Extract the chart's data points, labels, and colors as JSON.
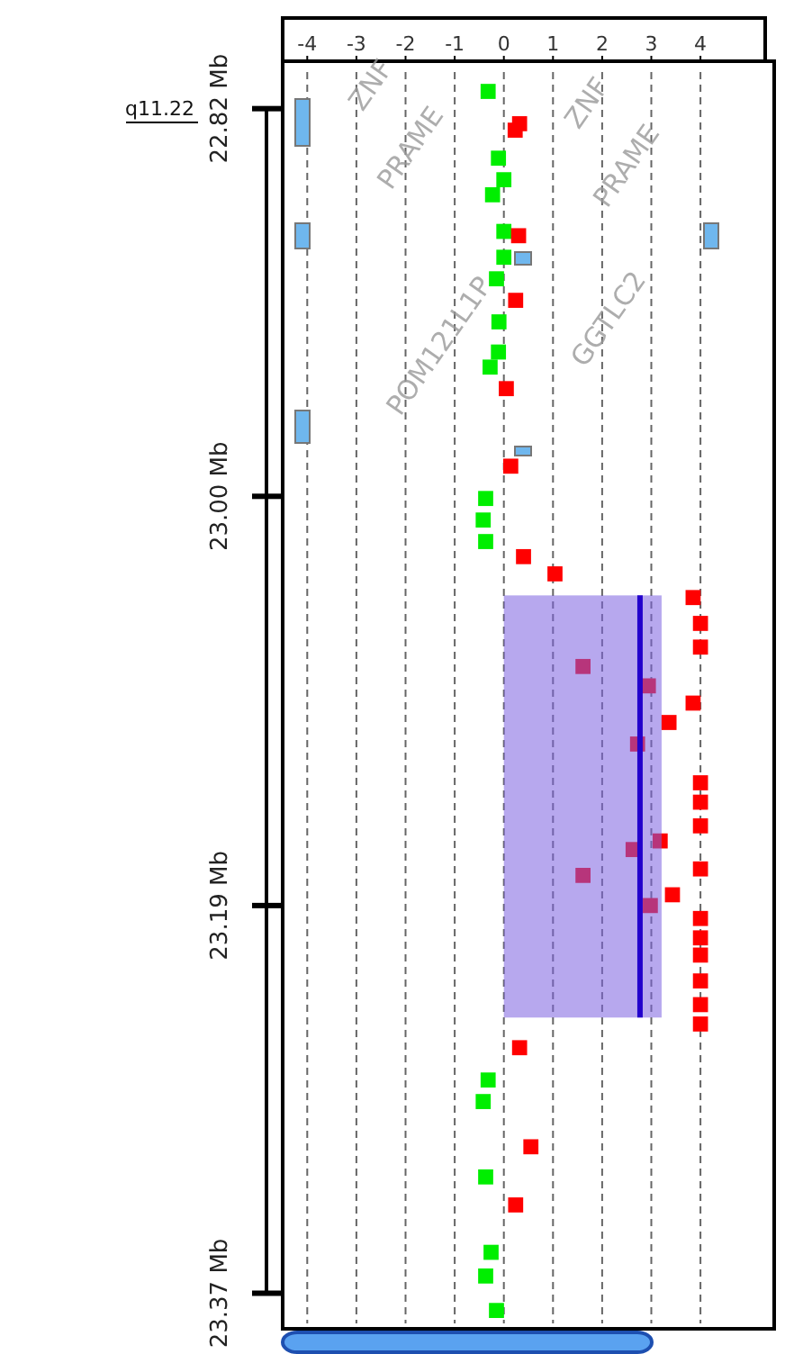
{
  "chart_data": {
    "type": "scatter",
    "xlim": [
      -4.5,
      5.5
    ],
    "xticks": [
      -4,
      -3,
      -2,
      -1,
      0,
      1,
      2,
      3,
      4
    ],
    "ylim": [
      23.384,
      22.803
    ],
    "yticks": [
      {
        "value": 22.82,
        "label": "22.82 Mb"
      },
      {
        "value": 23.0,
        "label": "23.00 Mb"
      },
      {
        "value": 23.19,
        "label": "23.19 Mb"
      },
      {
        "value": 23.37,
        "label": "23.37 Mb"
      }
    ],
    "grid": "x",
    "marker": "square",
    "series": [
      {
        "color": "#00ee00",
        "x": [
          -0.32,
          -0.11,
          0.0,
          -0.23,
          0.0,
          0.0,
          -0.15,
          -0.1,
          -0.11,
          -0.28,
          -0.37,
          -0.42,
          -0.37,
          -0.32,
          -0.42,
          -0.37,
          -0.26,
          -0.37,
          -0.15
        ],
        "values": [
          22.812,
          22.843,
          22.853,
          22.86,
          22.877,
          22.889,
          22.899,
          22.919,
          22.933,
          22.94,
          23.001,
          23.011,
          23.021,
          23.271,
          23.281,
          23.316,
          23.351,
          23.362,
          23.378
        ]
      },
      {
        "color": "#ff0000",
        "x": [
          0.32,
          0.23,
          0.3,
          0.24,
          0.05,
          0.14,
          0.4,
          1.04,
          3.85,
          4.0,
          4.0,
          1.61,
          2.94,
          3.85,
          3.36,
          2.72,
          4.0,
          4.0,
          4.0,
          3.18,
          2.63,
          4.0,
          1.61,
          3.43,
          2.98,
          4.0,
          4.0,
          4.0,
          4.0,
          4.0,
          4.0,
          0.32,
          0.55,
          0.24
        ],
        "values": [
          22.827,
          22.83,
          22.879,
          22.909,
          22.95,
          22.986,
          23.028,
          23.036,
          23.047,
          23.059,
          23.07,
          23.079,
          23.088,
          23.096,
          23.105,
          23.115,
          23.133,
          23.142,
          23.153,
          23.16,
          23.164,
          23.173,
          23.176,
          23.185,
          23.19,
          23.196,
          23.205,
          23.213,
          23.225,
          23.236,
          23.245,
          23.256,
          23.302,
          23.329
        ]
      },
      {
        "type": "line",
        "marker": "none",
        "color": "#2200cc",
        "x": [
          2.77,
          2.77
        ],
        "values": [
          23.046,
          23.242
        ]
      }
    ],
    "bands": [
      {
        "axis": "y",
        "from": 23.046,
        "to": 23.242,
        "color": "#7b61e0"
      }
    ],
    "annotations": [
      "q11.22",
      "ZNF",
      "PRAME",
      "POM121L1P",
      "ZNF",
      "PRAME",
      "GGTLC2"
    ]
  }
}
